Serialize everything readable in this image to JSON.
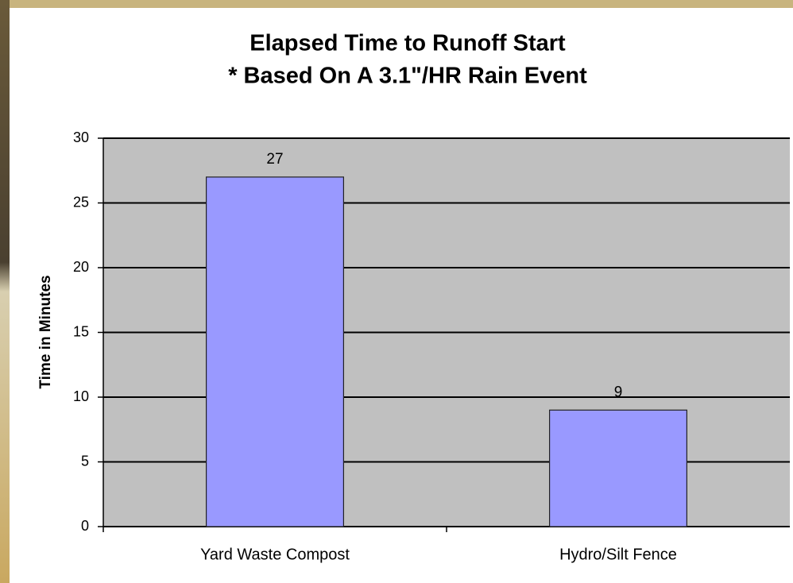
{
  "chart_data": {
    "type": "bar",
    "title": "Elapsed Time to Runoff Start",
    "subtitle": "* Based On A 3.1\"/HR Rain Event",
    "y_label": "Time in Minutes",
    "categories": [
      "Yard Waste Compost",
      "Hydro/Silt Fence"
    ],
    "values": [
      27,
      9
    ],
    "color": "#9999ff",
    "ylim": [
      0,
      30
    ],
    "yticks": [
      0,
      5,
      10,
      15,
      20,
      25,
      30
    ],
    "grid": true
  }
}
